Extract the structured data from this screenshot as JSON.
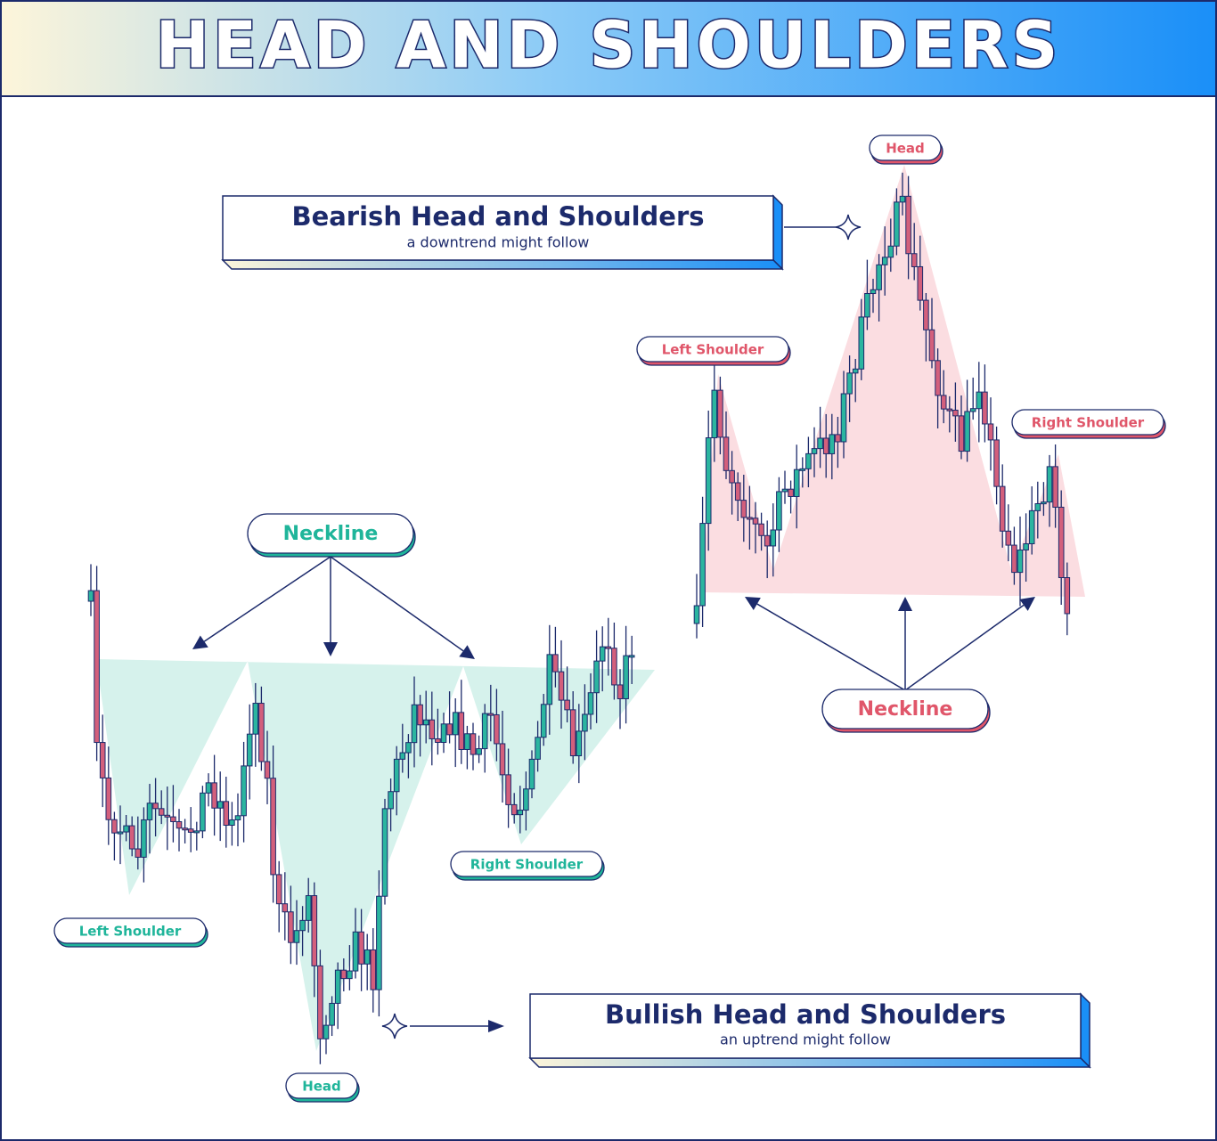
{
  "header": {
    "title": "HEAD AND SHOULDERS"
  },
  "bearish": {
    "title": "Bearish Head and Shoulders",
    "subtitle": "a downtrend might follow",
    "labels": {
      "head": "Head",
      "left_shoulder": "Left Shoulder",
      "right_shoulder": "Right Shoulder",
      "neckline": "Neckline"
    }
  },
  "bullish": {
    "title": "Bullish Head and Shoulders",
    "subtitle": "an uptrend might follow",
    "labels": {
      "head": "Head",
      "left_shoulder": "Left Shoulder",
      "right_shoulder": "Right Shoulder",
      "neckline": "Neckline"
    }
  }
}
